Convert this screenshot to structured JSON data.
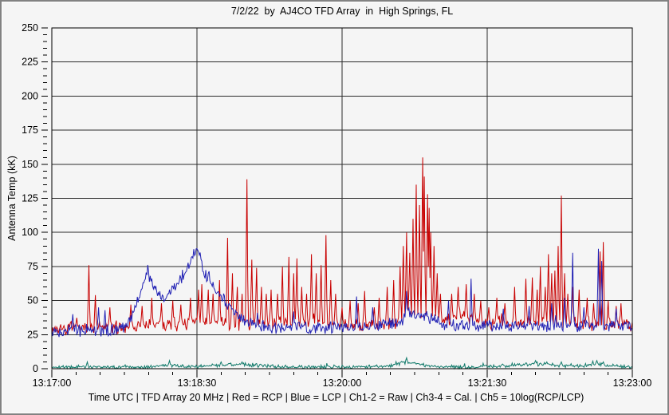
{
  "chart": {
    "title": "7/2/22  by  AJ4CO TFD Array  in  High Springs, FL",
    "ylabel": "Antenna Temp (kK)",
    "footer": "Time UTC | TFD Array 20 MHz | Red = RCP | Blue = LCP | Ch1-2 = Raw | Ch3-4 = Cal. | Ch5 = 10log(RCP/LCP)"
  },
  "chart_data": {
    "type": "line",
    "title": "7/2/22  by  AJ4CO TFD Array  in  High Springs, FL",
    "xlabel": "Time UTC",
    "ylabel": "Antenna Temp (kK)",
    "x_start": "13:17:00",
    "x_end": "13:23:00",
    "x_span_seconds": 360,
    "x_ticks": [
      {
        "t": 0,
        "label": "13:17:00"
      },
      {
        "t": 90,
        "label": "13:18:30"
      },
      {
        "t": 180,
        "label": "13:20:00"
      },
      {
        "t": 270,
        "label": "13:21:30"
      },
      {
        "t": 360,
        "label": "13:23:00"
      }
    ],
    "x_minor_step_seconds": 15,
    "ylim": [
      0,
      250
    ],
    "y_major_step": 25,
    "y_minor_step": 5,
    "grid": "major-only",
    "legend_in_footer": [
      "Red = RCP",
      "Blue = LCP",
      "Ch1-2 = Raw",
      "Ch3-4 = Cal.",
      "Ch5 = 10log(RCP/LCP)"
    ],
    "series": [
      {
        "name": "RCP",
        "channel": "Ch1-2 Raw",
        "color": "#c80000",
        "noise": 2.8,
        "seed": 7,
        "min": 23,
        "baseline": [
          [
            0,
            29
          ],
          [
            55,
            31
          ],
          [
            90,
            34
          ],
          [
            100,
            34
          ],
          [
            120,
            33
          ],
          [
            150,
            34
          ],
          [
            175,
            33
          ],
          [
            182,
            32
          ],
          [
            212,
            32
          ],
          [
            216,
            38
          ],
          [
            228,
            42
          ],
          [
            238,
            38
          ],
          [
            244,
            35
          ],
          [
            252,
            40
          ],
          [
            258,
            38
          ],
          [
            268,
            34
          ],
          [
            285,
            34
          ],
          [
            300,
            35
          ],
          [
            322,
            34
          ],
          [
            345,
            32
          ],
          [
            360,
            31
          ]
        ],
        "spikes": [
          [
            23,
            76
          ],
          [
            27,
            54
          ],
          [
            36,
            45
          ],
          [
            49,
            47
          ],
          [
            56,
            46
          ],
          [
            62,
            52
          ],
          [
            68,
            48
          ],
          [
            75,
            50
          ],
          [
            80,
            47
          ],
          [
            86,
            52
          ],
          [
            91,
            58
          ],
          [
            93,
            62
          ],
          [
            97,
            58
          ],
          [
            100,
            55
          ],
          [
            104,
            65
          ],
          [
            109,
            96
          ],
          [
            112,
            70
          ],
          [
            115,
            60
          ],
          [
            118,
            55
          ],
          [
            121,
            139
          ],
          [
            124,
            80
          ],
          [
            127,
            74
          ],
          [
            130,
            60
          ],
          [
            133,
            55
          ],
          [
            136,
            58
          ],
          [
            140,
            55
          ],
          [
            143,
            75
          ],
          [
            147,
            82
          ],
          [
            150,
            70
          ],
          [
            152,
            81
          ],
          [
            155,
            60
          ],
          [
            158,
            55
          ],
          [
            161,
            84
          ],
          [
            164,
            70
          ],
          [
            167,
            76
          ],
          [
            170,
            98
          ],
          [
            173,
            65
          ],
          [
            176,
            55
          ],
          [
            180,
            45
          ],
          [
            185,
            50
          ],
          [
            190,
            48
          ],
          [
            194,
            57
          ],
          [
            200,
            45
          ],
          [
            203,
            52
          ],
          [
            208,
            60
          ],
          [
            212,
            65
          ],
          [
            216,
            75
          ],
          [
            218,
            90
          ],
          [
            220,
            100
          ],
          [
            222,
            85
          ],
          [
            224,
            110
          ],
          [
            226,
            135
          ],
          [
            228,
            120
          ],
          [
            230,
            155
          ],
          [
            231,
            141
          ],
          [
            233,
            128
          ],
          [
            234,
            118
          ],
          [
            235,
            100
          ],
          [
            237,
            90
          ],
          [
            239,
            70
          ],
          [
            241,
            55
          ],
          [
            248,
            55
          ],
          [
            252,
            60
          ],
          [
            257,
            62
          ],
          [
            262,
            55
          ],
          [
            266,
            50
          ],
          [
            271,
            45
          ],
          [
            276,
            52
          ],
          [
            281,
            48
          ],
          [
            287,
            60
          ],
          [
            294,
            66
          ],
          [
            298,
            67
          ],
          [
            301,
            58
          ],
          [
            303,
            75
          ],
          [
            306,
            60
          ],
          [
            308,
            84
          ],
          [
            310,
            70
          ],
          [
            312,
            72
          ],
          [
            314,
            90
          ],
          [
            316,
            127
          ],
          [
            318,
            70
          ],
          [
            320,
            55
          ],
          [
            323,
            60
          ],
          [
            327,
            58
          ],
          [
            332,
            52
          ],
          [
            336,
            48
          ],
          [
            340,
            86
          ],
          [
            342,
            93
          ],
          [
            345,
            50
          ],
          [
            350,
            46
          ],
          [
            353,
            48
          ]
        ]
      },
      {
        "name": "LCP",
        "channel": "Ch1-2 Raw",
        "color": "#2121b4",
        "noise": 2.6,
        "seed": 13,
        "min": 23,
        "baseline": [
          [
            0,
            28
          ],
          [
            40,
            28
          ],
          [
            46,
            32
          ],
          [
            52,
            45
          ],
          [
            58,
            68
          ],
          [
            60,
            70
          ],
          [
            63,
            60
          ],
          [
            66,
            54
          ],
          [
            70,
            52
          ],
          [
            74,
            58
          ],
          [
            78,
            62
          ],
          [
            82,
            70
          ],
          [
            86,
            78
          ],
          [
            90,
            90
          ],
          [
            92,
            82
          ],
          [
            95,
            70
          ],
          [
            98,
            64
          ],
          [
            102,
            57
          ],
          [
            106,
            51
          ],
          [
            110,
            45
          ],
          [
            114,
            40
          ],
          [
            118,
            36
          ],
          [
            125,
            32
          ],
          [
            135,
            30
          ],
          [
            160,
            30
          ],
          [
            190,
            31
          ],
          [
            214,
            33
          ],
          [
            222,
            40
          ],
          [
            230,
            40
          ],
          [
            236,
            36
          ],
          [
            242,
            33
          ],
          [
            256,
            32
          ],
          [
            300,
            31
          ],
          [
            330,
            31
          ],
          [
            344,
            32
          ],
          [
            360,
            30
          ]
        ],
        "spikes": [
          [
            13,
            40
          ],
          [
            29,
            45
          ],
          [
            33,
            43
          ],
          [
            150,
            42
          ],
          [
            189,
            53
          ],
          [
            199,
            45
          ],
          [
            220,
            57
          ],
          [
            246,
            50
          ],
          [
            260,
            66
          ],
          [
            280,
            44
          ],
          [
            296,
            46
          ],
          [
            310,
            48
          ],
          [
            318,
            52
          ],
          [
            323,
            85
          ],
          [
            330,
            45
          ],
          [
            339,
            88
          ],
          [
            341,
            79
          ],
          [
            350,
            44
          ]
        ]
      },
      {
        "name": "Ch5",
        "channel": "10log(RCP/LCP)",
        "color": "#107a6a",
        "noise": 0.8,
        "seed": 21,
        "min": 0.2,
        "baseline": [
          [
            0,
            1
          ],
          [
            18,
            1.5
          ],
          [
            30,
            1
          ],
          [
            45,
            1.5
          ],
          [
            60,
            1
          ],
          [
            70,
            2.5
          ],
          [
            78,
            2
          ],
          [
            90,
            1.5
          ],
          [
            100,
            2.5
          ],
          [
            110,
            3
          ],
          [
            122,
            3
          ],
          [
            132,
            2
          ],
          [
            150,
            1
          ],
          [
            170,
            1.5
          ],
          [
            186,
            1
          ],
          [
            200,
            1.5
          ],
          [
            210,
            2
          ],
          [
            216,
            4
          ],
          [
            221,
            5
          ],
          [
            226,
            3.5
          ],
          [
            232,
            2.5
          ],
          [
            240,
            1.5
          ],
          [
            258,
            1
          ],
          [
            280,
            2
          ],
          [
            292,
            3
          ],
          [
            300,
            3.5
          ],
          [
            308,
            3
          ],
          [
            316,
            2.5
          ],
          [
            324,
            2
          ],
          [
            332,
            2.5
          ],
          [
            338,
            3.5
          ],
          [
            344,
            2.5
          ],
          [
            352,
            1.5
          ],
          [
            360,
            1
          ]
        ],
        "spikes": [
          [
            22,
            5
          ],
          [
            73,
            6
          ],
          [
            105,
            5
          ],
          [
            118,
            5
          ],
          [
            220,
            8
          ],
          [
            300,
            6
          ],
          [
            307,
            5
          ],
          [
            316,
            5
          ],
          [
            338,
            6
          ],
          [
            342,
            5
          ]
        ]
      }
    ]
  }
}
